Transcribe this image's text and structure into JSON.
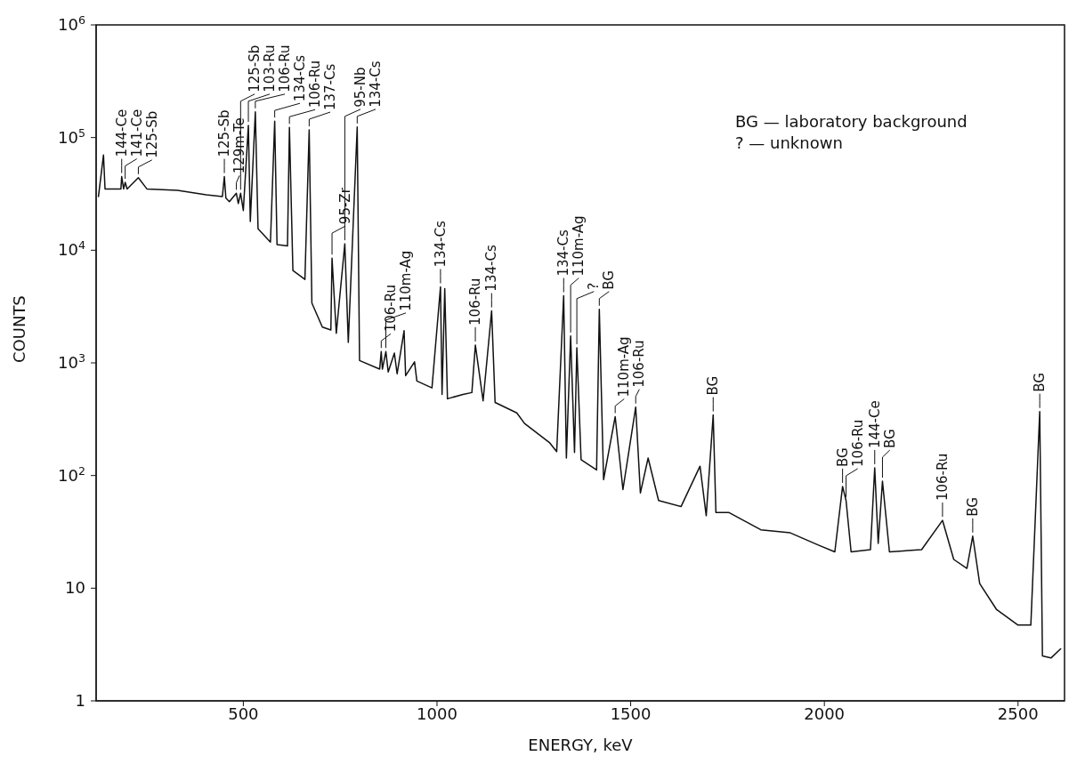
{
  "chart_data": {
    "type": "line",
    "xlabel": "ENERGY, keV",
    "ylabel": "COUNTS",
    "log": "y",
    "color": "#111111",
    "xlim": [
      120,
      2620
    ],
    "xticks": [
      500,
      1000,
      1500,
      2000,
      2500
    ],
    "ylim": [
      1,
      1000000
    ],
    "yticks": [
      1,
      10,
      {
        "value": 100,
        "label": "10$^{2}$"
      },
      {
        "value": 1000,
        "label": "10$^{3}$"
      },
      {
        "value": 10000,
        "label": "10$^{4}$"
      },
      {
        "value": 100000,
        "label": "10$^{5}$"
      },
      {
        "value": 1000000,
        "label": "10$^{6}$"
      }
    ],
    "x": [
      126,
      139,
      143,
      184,
      186,
      191,
      195,
      200,
      229,
      251,
      330,
      404,
      446,
      451,
      455,
      464,
      482,
      487,
      493,
      500,
      513,
      518,
      531,
      538,
      570,
      581,
      587,
      614,
      619,
      628,
      659,
      670,
      677,
      704,
      726,
      729,
      740,
      762,
      771,
      794,
      800,
      852,
      856,
      859,
      868,
      874,
      890,
      897,
      915,
      919,
      942,
      948,
      987,
      1009,
      1013,
      1020,
      1027,
      1067,
      1090,
      1099,
      1119,
      1141,
      1150,
      1206,
      1226,
      1291,
      1309,
      1327,
      1334,
      1345,
      1355,
      1361,
      1372,
      1412,
      1419,
      1430,
      1460,
      1480,
      1513,
      1525,
      1545,
      1572,
      1630,
      1679,
      1695,
      1713,
      1720,
      1753,
      1836,
      1912,
      1986,
      2027,
      2047,
      2056,
      2069,
      2119,
      2130,
      2139,
      2150,
      2168,
      2251,
      2305,
      2334,
      2368,
      2383,
      2401,
      2444,
      2500,
      2533,
      2556,
      2563,
      2585,
      2610
    ],
    "values": [
      30000,
      70000,
      35000,
      35000,
      45000,
      35000,
      40000,
      35000,
      44000,
      35000,
      34000,
      31000,
      30000,
      45000,
      29000,
      27000,
      32000,
      26000,
      32000,
      22500,
      128000,
      18000,
      169000,
      15500,
      11800,
      140000,
      11200,
      10900,
      123000,
      6600,
      5500,
      117000,
      3400,
      2080,
      1960,
      8500,
      1830,
      11400,
      1520,
      124000,
      1050,
      880,
      1260,
      880,
      1260,
      830,
      1220,
      800,
      1930,
      770,
      1020,
      690,
      600,
      4730,
      525,
      4570,
      480,
      525,
      545,
      1440,
      460,
      2890,
      445,
      360,
      290,
      195,
      163,
      3940,
      143,
      1730,
      160,
      1360,
      138,
      112,
      2990,
      92,
      333,
      75,
      405,
      70,
      143,
      60,
      53,
      121,
      44,
      345,
      47,
      47,
      33,
      31,
      24,
      21,
      80,
      60,
      21,
      22,
      117,
      25,
      89,
      21,
      22,
      40,
      18,
      15,
      29,
      11,
      6.5,
      4.7,
      4.7,
      370,
      2.5,
      2.4,
      2.9
    ],
    "annotations": [
      {
        "text": "144-Ce",
        "x": 186,
        "y": 45000
      },
      {
        "text": "141-Ce",
        "x": 195,
        "y": 40000
      },
      {
        "text": "125-Sb",
        "x": 229,
        "y": 44000
      },
      {
        "text": "125-Sb",
        "x": 451,
        "y": 45000
      },
      {
        "text": "129m-Te",
        "x": 482,
        "y": 32000
      },
      {
        "text": "125-Sb",
        "x": 493,
        "y": 32000
      },
      {
        "text": "103-Ru",
        "x": 513,
        "y": 128000
      },
      {
        "text": "106-Ru",
        "x": 531,
        "y": 169000
      },
      {
        "text": "134-Cs",
        "x": 581,
        "y": 140000
      },
      {
        "text": "106-Ru",
        "x": 619,
        "y": 123000
      },
      {
        "text": "137-Cs",
        "x": 670,
        "y": 117000
      },
      {
        "text": "95-Zr",
        "x": 729,
        "y": 8500
      },
      {
        "text": "95-Nb",
        "x": 762,
        "y": 11400
      },
      {
        "text": "134-Cs",
        "x": 794,
        "y": 124000
      },
      {
        "text": "106-Ru",
        "x": 856,
        "y": 1260
      },
      {
        "text": "110m-Ag",
        "x": 868,
        "y": 1260
      },
      {
        "text": "134-Cs",
        "x": 1009,
        "y": 4730
      },
      {
        "text": "106-Ru",
        "x": 1099,
        "y": 1440
      },
      {
        "text": "134-Cs",
        "x": 1141,
        "y": 2890
      },
      {
        "text": "134-Cs",
        "x": 1327,
        "y": 3940
      },
      {
        "text": "110m-Ag",
        "x": 1345,
        "y": 1730
      },
      {
        "text": "?",
        "x": 1361,
        "y": 1360
      },
      {
        "text": "BG",
        "x": 1419,
        "y": 2990
      },
      {
        "text": "110m-Ag",
        "x": 1460,
        "y": 333
      },
      {
        "text": "106-Ru",
        "x": 1513,
        "y": 405
      },
      {
        "text": "BG",
        "x": 1713,
        "y": 345
      },
      {
        "text": "BG",
        "x": 2047,
        "y": 80
      },
      {
        "text": "106-Ru",
        "x": 2056,
        "y": 60
      },
      {
        "text": "144-Ce",
        "x": 2130,
        "y": 117
      },
      {
        "text": "BG",
        "x": 2150,
        "y": 89
      },
      {
        "text": "106-Ru",
        "x": 2305,
        "y": 40
      },
      {
        "text": "BG",
        "x": 2383,
        "y": 29
      },
      {
        "text": "BG",
        "x": 2556,
        "y": 370
      },
      "BG — laboratory background",
      "? — unknown"
    ]
  }
}
